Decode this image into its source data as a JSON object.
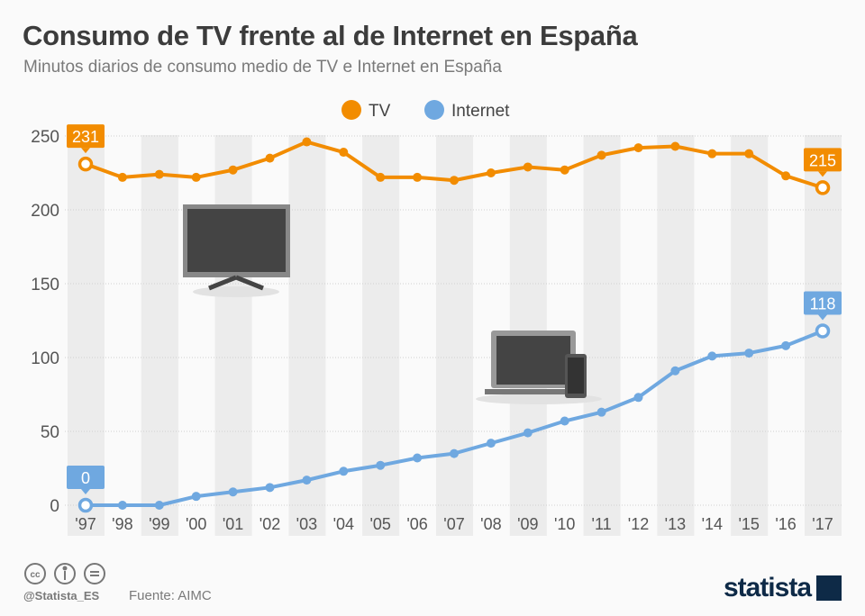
{
  "title": "Consumo de TV frente al de Internet en España",
  "subtitle": "Minutos diarios de consumo medio de TV e Internet en España",
  "footer": {
    "handle": "@Statista_ES",
    "source": "Fuente: AIMC",
    "brand": "statista",
    "license_icons": [
      "cc-icon",
      "by-icon",
      "nd-icon"
    ]
  },
  "chart_data": {
    "type": "line",
    "title": "Consumo de TV frente al de Internet en España",
    "subtitle": "Minutos diarios de consumo medio de TV e Internet en España",
    "xlabel": "",
    "ylabel": "",
    "categories": [
      "'97",
      "'98",
      "'99",
      "'00",
      "'01",
      "'02",
      "'03",
      "'04",
      "'05",
      "'06",
      "'07",
      "'08",
      "'09",
      "'10",
      "'11",
      "'12",
      "'13",
      "'14",
      "'15",
      "'16",
      "'17"
    ],
    "ylim": [
      0,
      250
    ],
    "yticks": [
      0,
      50,
      100,
      150,
      200,
      250
    ],
    "legend": "top-center",
    "grid": "alternating vertical stripes",
    "series": [
      {
        "name": "TV",
        "color": "#f28c00",
        "values": [
          231,
          222,
          224,
          222,
          227,
          235,
          246,
          239,
          222,
          222,
          220,
          225,
          229,
          227,
          237,
          242,
          243,
          238,
          238,
          223,
          215
        ]
      },
      {
        "name": "Internet",
        "color": "#6fa8e0",
        "values": [
          0,
          0,
          0,
          6,
          9,
          12,
          17,
          23,
          27,
          32,
          35,
          42,
          49,
          57,
          63,
          73,
          91,
          101,
          103,
          108,
          118
        ]
      }
    ],
    "annotations": [
      {
        "series": "TV",
        "category": "'97",
        "label": "231"
      },
      {
        "series": "TV",
        "category": "'17",
        "label": "215"
      },
      {
        "series": "Internet",
        "category": "'97",
        "label": "0"
      },
      {
        "series": "Internet",
        "category": "'17",
        "label": "118"
      }
    ]
  }
}
